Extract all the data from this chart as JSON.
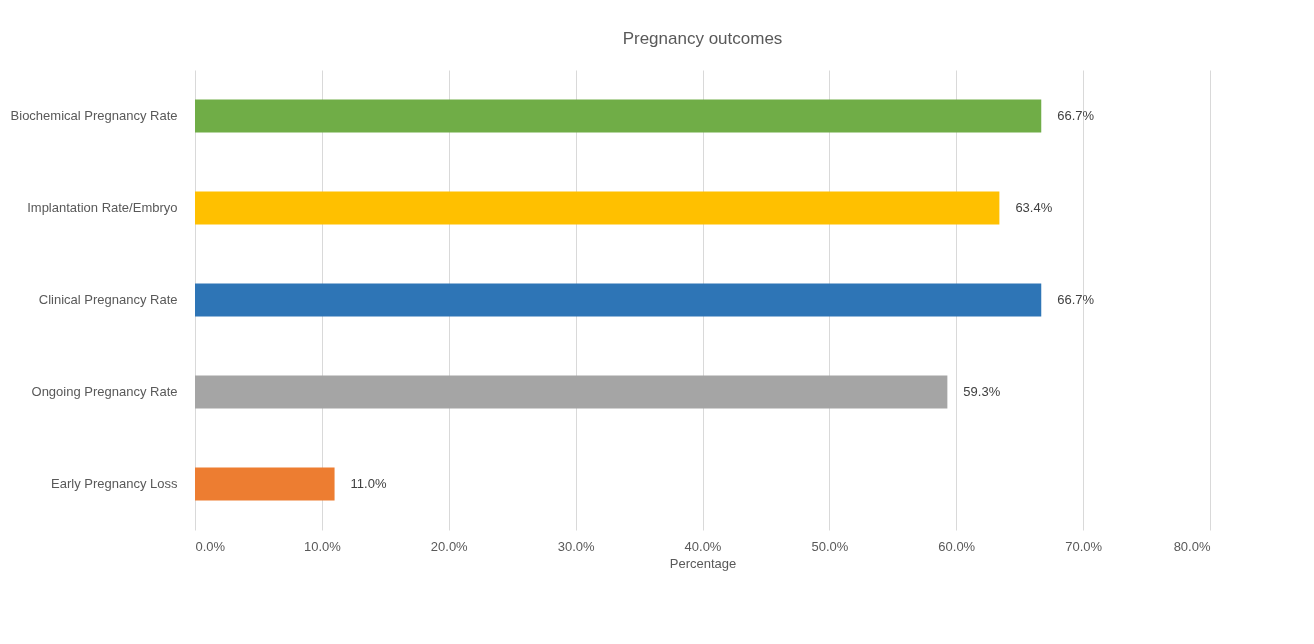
{
  "chart_data": {
    "type": "bar",
    "orientation": "horizontal",
    "title": "Pregnancy outcomes",
    "xlabel": "Percentage",
    "categories": [
      "Biochemical Pregnancy Rate",
      "Implantation Rate/Embryo",
      "Clinical Pregnancy Rate",
      "Ongoing Pregnancy Rate",
      "Early Pregnancy Loss"
    ],
    "values": [
      66.7,
      63.4,
      66.7,
      59.3,
      11.0
    ],
    "colors": [
      "#70ad47",
      "#ffc000",
      "#2e75b6",
      "#a5a5a5",
      "#ed7d31"
    ],
    "value_labels": [
      "66.7%",
      "63.4%",
      "66.7%",
      "59.3%",
      "11.0%"
    ],
    "xlim": [
      0,
      80
    ],
    "xticks": [
      {
        "value": 0,
        "label": "0.0%"
      },
      {
        "value": 10,
        "label": "10.0%"
      },
      {
        "value": 20,
        "label": "20.0%"
      },
      {
        "value": 30,
        "label": "30.0%"
      },
      {
        "value": 40,
        "label": "40.0%"
      },
      {
        "value": 50,
        "label": "50.0%"
      },
      {
        "value": 60,
        "label": "60.0%"
      },
      {
        "value": 70,
        "label": "70.0%"
      },
      {
        "value": 80,
        "label": "80.0%"
      }
    ],
    "grid": "x"
  }
}
